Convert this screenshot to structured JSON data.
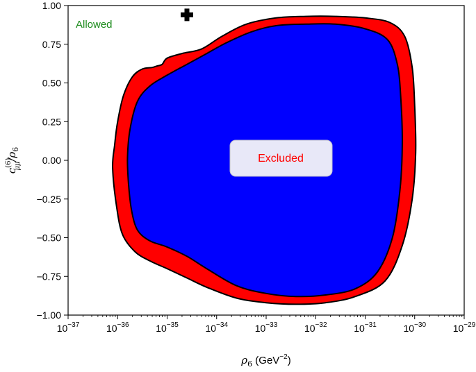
{
  "chart_data": {
    "type": "area",
    "xlabel": {
      "base": "ρ",
      "sub": "6",
      "units": " (GeV",
      "sup": "−2",
      "close": ")"
    },
    "ylabel": {
      "tilde": "~",
      "c": "c",
      "sup": "(6)",
      "sub": "μμ",
      "slash": "/ρ",
      "sub2": "6"
    },
    "xscale": "log",
    "x_exp_range": [
      -37,
      -29
    ],
    "x_ticks": [
      {
        "base": "10",
        "exp": "−37"
      },
      {
        "base": "10",
        "exp": "−36"
      },
      {
        "base": "10",
        "exp": "−35"
      },
      {
        "base": "10",
        "exp": "−34"
      },
      {
        "base": "10",
        "exp": "−33"
      },
      {
        "base": "10",
        "exp": "−32"
      },
      {
        "base": "10",
        "exp": "−31"
      },
      {
        "base": "10",
        "exp": "−30"
      },
      {
        "base": "10",
        "exp": "−29"
      }
    ],
    "ylim": [
      -1.0,
      1.0
    ],
    "y_ticks": [
      "−1.00",
      "−0.75",
      "−0.50",
      "−0.25",
      "0.00",
      "0.25",
      "0.50",
      "0.75",
      "1.00"
    ],
    "grid": false,
    "annotations": {
      "allowed": {
        "text": "Allowed",
        "color": "#1a8a1a"
      },
      "excluded": {
        "text": "Excluded",
        "color": "#ff0000",
        "box_fill": "#e8e8f8"
      }
    },
    "colors": {
      "outer_region": "#ff0000",
      "inner_region": "#0000ff",
      "outline": "#000000"
    },
    "marker": {
      "shape": "plus",
      "log10_x": -34.6,
      "y": 0.94
    },
    "series": [
      {
        "fill": "#ff0000",
        "points": [
          [
            -36.1,
            -0.05
          ],
          [
            -36.02,
            -0.3
          ],
          [
            -35.9,
            -0.48
          ],
          [
            -35.65,
            -0.59
          ],
          [
            -35.35,
            -0.65
          ],
          [
            -35.0,
            -0.7
          ],
          [
            -34.6,
            -0.76
          ],
          [
            -34.2,
            -0.82
          ],
          [
            -33.6,
            -0.89
          ],
          [
            -33.0,
            -0.92
          ],
          [
            -32.4,
            -0.93
          ],
          [
            -31.8,
            -0.92
          ],
          [
            -31.2,
            -0.88
          ],
          [
            -30.6,
            -0.78
          ],
          [
            -30.25,
            -0.55
          ],
          [
            -30.05,
            -0.25
          ],
          [
            -29.98,
            0.05
          ],
          [
            -30.0,
            0.35
          ],
          [
            -30.05,
            0.6
          ],
          [
            -30.2,
            0.8
          ],
          [
            -30.5,
            0.89
          ],
          [
            -31.0,
            0.92
          ],
          [
            -31.6,
            0.93
          ],
          [
            -32.2,
            0.93
          ],
          [
            -32.8,
            0.92
          ],
          [
            -33.4,
            0.88
          ],
          [
            -33.9,
            0.8
          ],
          [
            -34.3,
            0.72
          ],
          [
            -34.7,
            0.69
          ],
          [
            -35.0,
            0.66
          ],
          [
            -35.1,
            0.62
          ],
          [
            -35.2,
            0.61
          ],
          [
            -35.3,
            0.6
          ],
          [
            -35.5,
            0.59
          ],
          [
            -35.7,
            0.54
          ],
          [
            -35.88,
            0.42
          ],
          [
            -36.0,
            0.25
          ],
          [
            -36.06,
            0.1
          ]
        ]
      },
      {
        "fill": "#0000ff",
        "points": [
          [
            -35.78,
            -0.15
          ],
          [
            -35.72,
            -0.32
          ],
          [
            -35.6,
            -0.45
          ],
          [
            -35.35,
            -0.52
          ],
          [
            -35.0,
            -0.56
          ],
          [
            -34.6,
            -0.62
          ],
          [
            -34.2,
            -0.7
          ],
          [
            -33.6,
            -0.81
          ],
          [
            -33.0,
            -0.86
          ],
          [
            -32.4,
            -0.88
          ],
          [
            -31.8,
            -0.87
          ],
          [
            -31.2,
            -0.83
          ],
          [
            -30.75,
            -0.72
          ],
          [
            -30.45,
            -0.5
          ],
          [
            -30.3,
            -0.2
          ],
          [
            -30.25,
            0.1
          ],
          [
            -30.28,
            0.4
          ],
          [
            -30.35,
            0.62
          ],
          [
            -30.55,
            0.78
          ],
          [
            -31.0,
            0.85
          ],
          [
            -31.6,
            0.88
          ],
          [
            -32.2,
            0.88
          ],
          [
            -32.8,
            0.87
          ],
          [
            -33.3,
            0.83
          ],
          [
            -33.8,
            0.76
          ],
          [
            -34.2,
            0.69
          ],
          [
            -34.6,
            0.62
          ],
          [
            -35.0,
            0.55
          ],
          [
            -35.35,
            0.48
          ],
          [
            -35.6,
            0.38
          ],
          [
            -35.75,
            0.2
          ],
          [
            -35.8,
            0.02
          ]
        ]
      }
    ]
  }
}
